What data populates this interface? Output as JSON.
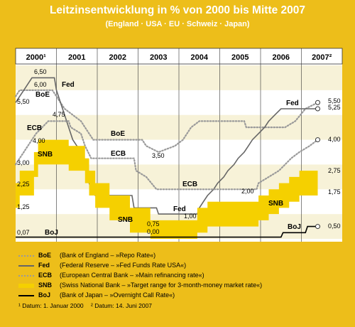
{
  "title": "Leitzinsentwicklung in % von 2000 bis Mitte 2007",
  "subtitle": "(England · USA · EU · Schweiz · Japan)",
  "chart_data": {
    "type": "line",
    "title": "Leitzinsentwicklung in % von 2000 bis Mitte 2007",
    "subtitle": "(England · USA · EU · Schweiz · Japan)",
    "categories": [
      "2000¹",
      "2001",
      "2002",
      "2003",
      "2004",
      "2005",
      "2006",
      "2007²"
    ],
    "ylim": [
      0,
      7
    ],
    "series": [
      {
        "name": "BoE",
        "color": "#9a9a9a",
        "style": "dotted",
        "points": [
          [
            2000.0,
            5.75
          ],
          [
            2000.1,
            6.0
          ],
          [
            2000.9,
            6.0
          ],
          [
            2001.0,
            5.75
          ],
          [
            2001.2,
            5.25
          ],
          [
            2001.4,
            5.0
          ],
          [
            2001.6,
            4.75
          ],
          [
            2001.8,
            4.25
          ],
          [
            2001.9,
            4.0
          ],
          [
            2003.1,
            4.0
          ],
          [
            2003.2,
            3.75
          ],
          [
            2003.5,
            3.5
          ],
          [
            2003.9,
            3.75
          ],
          [
            2004.1,
            4.0
          ],
          [
            2004.3,
            4.5
          ],
          [
            2004.5,
            4.75
          ],
          [
            2005.6,
            4.75
          ],
          [
            2005.65,
            4.5
          ],
          [
            2006.6,
            4.5
          ],
          [
            2006.85,
            4.75
          ],
          [
            2007.1,
            5.25
          ],
          [
            2007.4,
            5.5
          ]
        ]
      },
      {
        "name": "Fed",
        "color": "#666666",
        "style": "solid",
        "points": [
          [
            2000.0,
            5.5
          ],
          [
            2000.1,
            5.75
          ],
          [
            2000.2,
            6.0
          ],
          [
            2000.4,
            6.5
          ],
          [
            2000.95,
            6.5
          ],
          [
            2001.0,
            6.0
          ],
          [
            2001.1,
            5.5
          ],
          [
            2001.2,
            5.0
          ],
          [
            2001.3,
            4.5
          ],
          [
            2001.4,
            4.0
          ],
          [
            2001.5,
            3.75
          ],
          [
            2001.65,
            3.5
          ],
          [
            2001.7,
            3.0
          ],
          [
            2001.75,
            2.5
          ],
          [
            2001.85,
            2.0
          ],
          [
            2001.95,
            1.75
          ],
          [
            2002.85,
            1.75
          ],
          [
            2002.9,
            1.25
          ],
          [
            2003.45,
            1.25
          ],
          [
            2003.5,
            1.0
          ],
          [
            2004.45,
            1.0
          ],
          [
            2004.5,
            1.25
          ],
          [
            2004.6,
            1.5
          ],
          [
            2004.7,
            1.75
          ],
          [
            2004.85,
            2.0
          ],
          [
            2004.95,
            2.25
          ],
          [
            2005.1,
            2.5
          ],
          [
            2005.2,
            2.75
          ],
          [
            2005.35,
            3.0
          ],
          [
            2005.45,
            3.25
          ],
          [
            2005.6,
            3.5
          ],
          [
            2005.7,
            3.75
          ],
          [
            2005.8,
            4.0
          ],
          [
            2005.95,
            4.25
          ],
          [
            2006.1,
            4.5
          ],
          [
            2006.2,
            4.75
          ],
          [
            2006.35,
            5.0
          ],
          [
            2006.5,
            5.25
          ],
          [
            2007.4,
            5.25
          ]
        ]
      },
      {
        "name": "ECB",
        "color": "#9a9a9a",
        "style": "dotted",
        "points": [
          [
            2000.0,
            3.0
          ],
          [
            2000.1,
            3.25
          ],
          [
            2000.2,
            3.5
          ],
          [
            2000.4,
            4.0
          ],
          [
            2000.5,
            4.25
          ],
          [
            2000.8,
            4.75
          ],
          [
            2001.3,
            4.75
          ],
          [
            2001.35,
            4.5
          ],
          [
            2001.6,
            4.25
          ],
          [
            2001.7,
            3.75
          ],
          [
            2001.85,
            3.25
          ],
          [
            2002.9,
            3.25
          ],
          [
            2002.95,
            2.75
          ],
          [
            2003.2,
            2.5
          ],
          [
            2003.45,
            2.0
          ],
          [
            2005.9,
            2.0
          ],
          [
            2005.95,
            2.25
          ],
          [
            2006.2,
            2.5
          ],
          [
            2006.45,
            2.75
          ],
          [
            2006.6,
            3.0
          ],
          [
            2006.75,
            3.25
          ],
          [
            2006.95,
            3.5
          ],
          [
            2007.2,
            3.75
          ],
          [
            2007.4,
            4.0
          ]
        ]
      },
      {
        "name": "SNB",
        "color": "#F5D000",
        "style": "band",
        "points": [
          [
            2000.0,
            1.25,
            2.25
          ],
          [
            2000.1,
            1.75,
            2.75
          ],
          [
            2000.45,
            2.5,
            3.5
          ],
          [
            2000.55,
            3.0,
            4.0
          ],
          [
            2001.3,
            2.75,
            3.75
          ],
          [
            2001.7,
            2.25,
            3.25
          ],
          [
            2001.8,
            1.75,
            2.75
          ],
          [
            2001.95,
            1.25,
            2.25
          ],
          [
            2002.3,
            0.75,
            1.75
          ],
          [
            2002.8,
            0.25,
            1.25
          ],
          [
            2003.3,
            0.0,
            0.75
          ],
          [
            2004.45,
            0.25,
            1.25
          ],
          [
            2004.7,
            0.5,
            1.5
          ],
          [
            2005.0,
            0.5,
            1.5
          ],
          [
            2005.95,
            0.75,
            1.75
          ],
          [
            2006.2,
            1.0,
            2.0
          ],
          [
            2006.45,
            1.25,
            2.25
          ],
          [
            2006.7,
            1.5,
            2.5
          ],
          [
            2006.95,
            1.75,
            2.75
          ],
          [
            2007.4,
            1.75,
            2.75
          ]
        ]
      },
      {
        "name": "BoJ",
        "color": "#000000",
        "style": "solid",
        "points": [
          [
            2000.0,
            0.07
          ],
          [
            2006.5,
            0.07
          ],
          [
            2006.55,
            0.25
          ],
          [
            2007.1,
            0.25
          ],
          [
            2007.15,
            0.5
          ],
          [
            2007.4,
            0.5
          ]
        ]
      }
    ],
    "value_labels": [
      {
        "text": "6,50"
      },
      {
        "text": "6,00"
      },
      {
        "text": "5,50"
      },
      {
        "text": "4,75"
      },
      {
        "text": "4,00"
      },
      {
        "text": "3,00"
      },
      {
        "text": "2,25"
      },
      {
        "text": "1,25"
      },
      {
        "text": "0,07"
      },
      {
        "text": "3,50"
      },
      {
        "text": "1,00"
      },
      {
        "text": "0,75"
      },
      {
        "text": "0,00"
      },
      {
        "text": "2,00"
      },
      {
        "text": "5,50"
      },
      {
        "text": "5,25"
      },
      {
        "text": "4,00"
      },
      {
        "text": "2,75"
      },
      {
        "text": "1,75"
      },
      {
        "text": "0,50"
      }
    ],
    "series_labels": [
      "BoE",
      "Fed",
      "ECB",
      "SNB",
      "ECB",
      "BoE",
      "Fed",
      "ECB",
      "SNB",
      "Fed",
      "SNB",
      "BoJ",
      "BoJ"
    ]
  },
  "legend": [
    {
      "code": "BoE",
      "text": "(Bank of England – »Repo Rate«)",
      "color": "#9a9a9a",
      "style": "dotted"
    },
    {
      "code": "Fed",
      "text": "(Federal Reserve – »Fed Funds Rate USA«)",
      "color": "#666666",
      "style": "solid"
    },
    {
      "code": "ECB",
      "text": "(European Central Bank – »Main refinancing rate«)",
      "color": "#9a9a9a",
      "style": "dotted"
    },
    {
      "code": "SNB",
      "text": "(Swiss National Bank – »Target range for 3-month-money market rate«)",
      "color": "#F5D000",
      "style": "band"
    },
    {
      "code": "BoJ",
      "text": "(Bank of Japan – »Overnight Call Rate«)",
      "color": "#000000",
      "style": "solid"
    }
  ],
  "footnotes": [
    "¹ Datum: 1. Januar 2000",
    "² Datum: 14. Juni 2007"
  ]
}
